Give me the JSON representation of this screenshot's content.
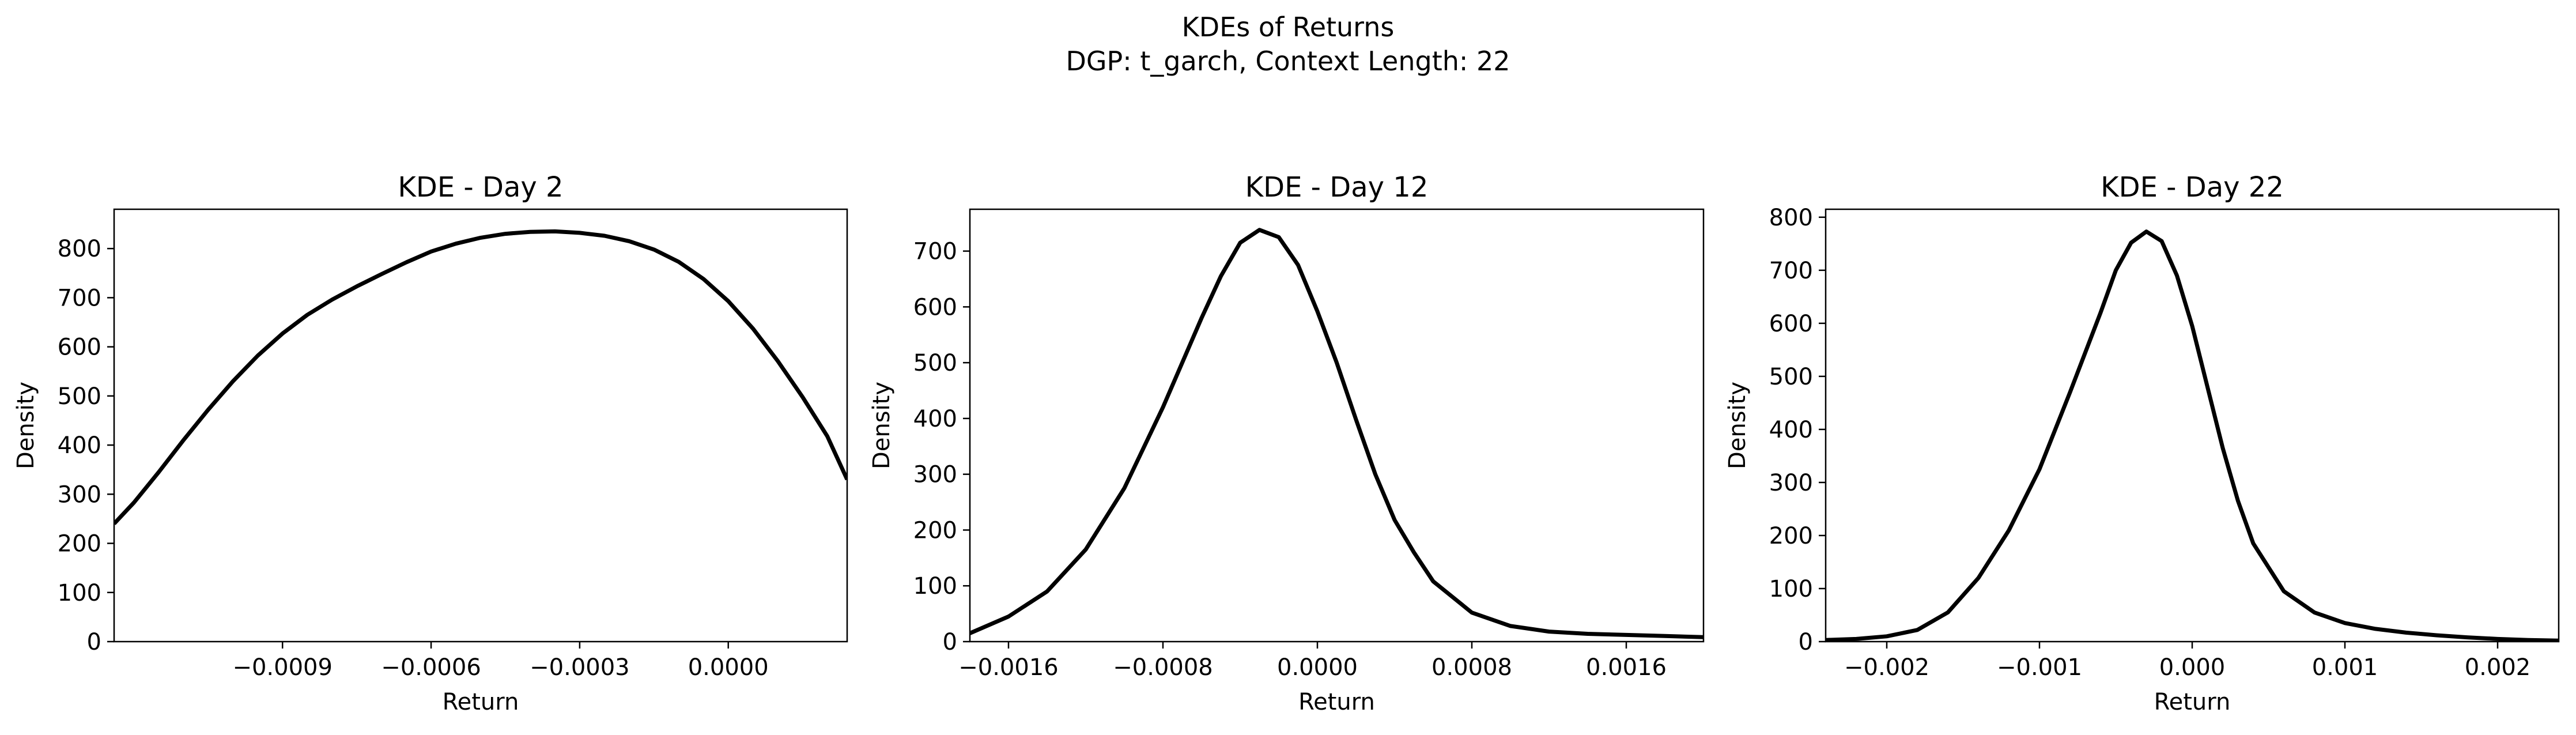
{
  "figure": {
    "suptitle_line1": "KDEs of Returns",
    "suptitle_line2": "DGP: t_garch, Context Length: 22"
  },
  "chart_data": [
    {
      "type": "line",
      "title": "KDE - Day 2",
      "xlabel": "Return",
      "ylabel": "Density",
      "xlim": [
        -0.00124,
        0.00024
      ],
      "ylim": [
        0,
        880
      ],
      "xticks": [
        -0.0009,
        -0.0006,
        -0.0003,
        0.0
      ],
      "xtick_labels": [
        "−0.0009",
        "−0.0006",
        "−0.0003",
        "0.0000"
      ],
      "yticks": [
        0,
        100,
        200,
        300,
        400,
        500,
        600,
        700,
        800
      ],
      "ytick_labels": [
        "0",
        "100",
        "200",
        "300",
        "400",
        "500",
        "600",
        "700",
        "800"
      ],
      "grid": false,
      "series": [
        {
          "color": "#000000",
          "x": [
            -0.00124,
            -0.0012,
            -0.00115,
            -0.0011,
            -0.00105,
            -0.001,
            -0.00095,
            -0.0009,
            -0.00085,
            -0.0008,
            -0.00075,
            -0.0007,
            -0.00065,
            -0.0006,
            -0.00055,
            -0.0005,
            -0.00045,
            -0.0004,
            -0.00035,
            -0.0003,
            -0.00025,
            -0.0002,
            -0.00015,
            -0.0001,
            -5e-05,
            0.0,
            5e-05,
            0.0001,
            0.00015,
            0.0002,
            0.00024
          ],
          "y": [
            240,
            283,
            345,
            410,
            472,
            530,
            582,
            627,
            665,
            696,
            723,
            748,
            772,
            794,
            810,
            822,
            830,
            834,
            835,
            832,
            826,
            815,
            798,
            773,
            738,
            693,
            637,
            571,
            498,
            418,
            330
          ]
        }
      ]
    },
    {
      "type": "line",
      "title": "KDE - Day 12",
      "xlabel": "Return",
      "ylabel": "Density",
      "xlim": [
        -0.0018,
        0.002
      ],
      "ylim": [
        0,
        775
      ],
      "xticks": [
        -0.0016,
        -0.0008,
        0.0,
        0.0008,
        0.0016
      ],
      "xtick_labels": [
        "−0.0016",
        "−0.0008",
        "0.0000",
        "0.0008",
        "0.0016"
      ],
      "yticks": [
        0,
        100,
        200,
        300,
        400,
        500,
        600,
        700
      ],
      "ytick_labels": [
        "0",
        "100",
        "200",
        "300",
        "400",
        "500",
        "600",
        "700"
      ],
      "grid": false,
      "series": [
        {
          "color": "#000000",
          "x": [
            -0.0018,
            -0.0016,
            -0.0014,
            -0.0012,
            -0.001,
            -0.0008,
            -0.0006,
            -0.0005,
            -0.0004,
            -0.0003,
            -0.0002,
            -0.0001,
            0.0,
            0.0001,
            0.0002,
            0.0003,
            0.0004,
            0.0005,
            0.0006,
            0.0008,
            0.001,
            0.0012,
            0.0014,
            0.0016,
            0.0018,
            0.002
          ],
          "y": [
            15,
            45,
            90,
            165,
            275,
            420,
            580,
            655,
            715,
            738,
            725,
            675,
            592,
            500,
            398,
            300,
            218,
            160,
            108,
            52,
            28,
            18,
            14,
            12,
            10,
            8
          ]
        }
      ]
    },
    {
      "type": "line",
      "title": "KDE - Day 22",
      "xlabel": "Return",
      "ylabel": "Density",
      "xlim": [
        -0.0024,
        0.0024
      ],
      "ylim": [
        0,
        815
      ],
      "xticks": [
        -0.002,
        -0.001,
        0.0,
        0.001,
        0.002
      ],
      "xtick_labels": [
        "−0.002",
        "−0.001",
        "0.000",
        "0.001",
        "0.002"
      ],
      "yticks": [
        0,
        100,
        200,
        300,
        400,
        500,
        600,
        700,
        800
      ],
      "ytick_labels": [
        "0",
        "100",
        "200",
        "300",
        "400",
        "500",
        "600",
        "700",
        "800"
      ],
      "grid": false,
      "series": [
        {
          "color": "#000000",
          "x": [
            -0.0024,
            -0.0022,
            -0.002,
            -0.0018,
            -0.0016,
            -0.0014,
            -0.0012,
            -0.001,
            -0.0008,
            -0.0006,
            -0.0005,
            -0.0004,
            -0.0003,
            -0.0002,
            -0.0001,
            0.0,
            0.0001,
            0.0002,
            0.0003,
            0.0004,
            0.0006,
            0.0008,
            0.001,
            0.0012,
            0.0014,
            0.0016,
            0.0018,
            0.002,
            0.0022,
            0.0024
          ],
          "y": [
            3,
            5,
            10,
            22,
            55,
            120,
            210,
            325,
            470,
            620,
            700,
            752,
            773,
            755,
            690,
            595,
            480,
            365,
            265,
            185,
            95,
            55,
            35,
            24,
            17,
            12,
            8,
            5,
            3,
            2
          ]
        }
      ]
    }
  ]
}
